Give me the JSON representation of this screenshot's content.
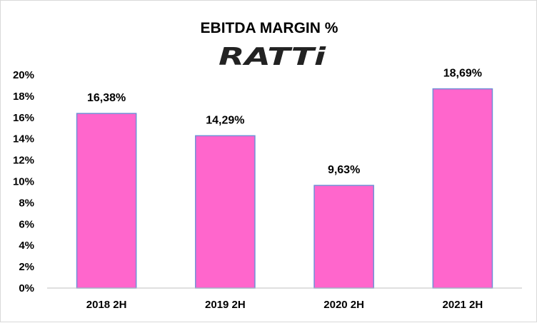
{
  "chart_data": {
    "type": "bar",
    "title": "EBITDA  MARGIN %",
    "logo_text": "RATTi",
    "categories": [
      "2018 2H",
      "2019 2H",
      "2020 2H",
      "2021 2H"
    ],
    "values": [
      16.38,
      14.29,
      9.63,
      18.69
    ],
    "data_labels": [
      "16,38%",
      "14,29%",
      "9,63%",
      "18,69%"
    ],
    "yticks": [
      "0%",
      "2%",
      "4%",
      "6%",
      "8%",
      "10%",
      "12%",
      "14%",
      "16%",
      "18%",
      "20%"
    ],
    "ylim": [
      0,
      20
    ],
    "xlabel": "",
    "ylabel": "",
    "grid": false,
    "legend": "none",
    "colors": {
      "bar_fill": "#ff66cc",
      "bar_stroke": "#6f8fd6",
      "axis": "#bfbfbf"
    }
  }
}
